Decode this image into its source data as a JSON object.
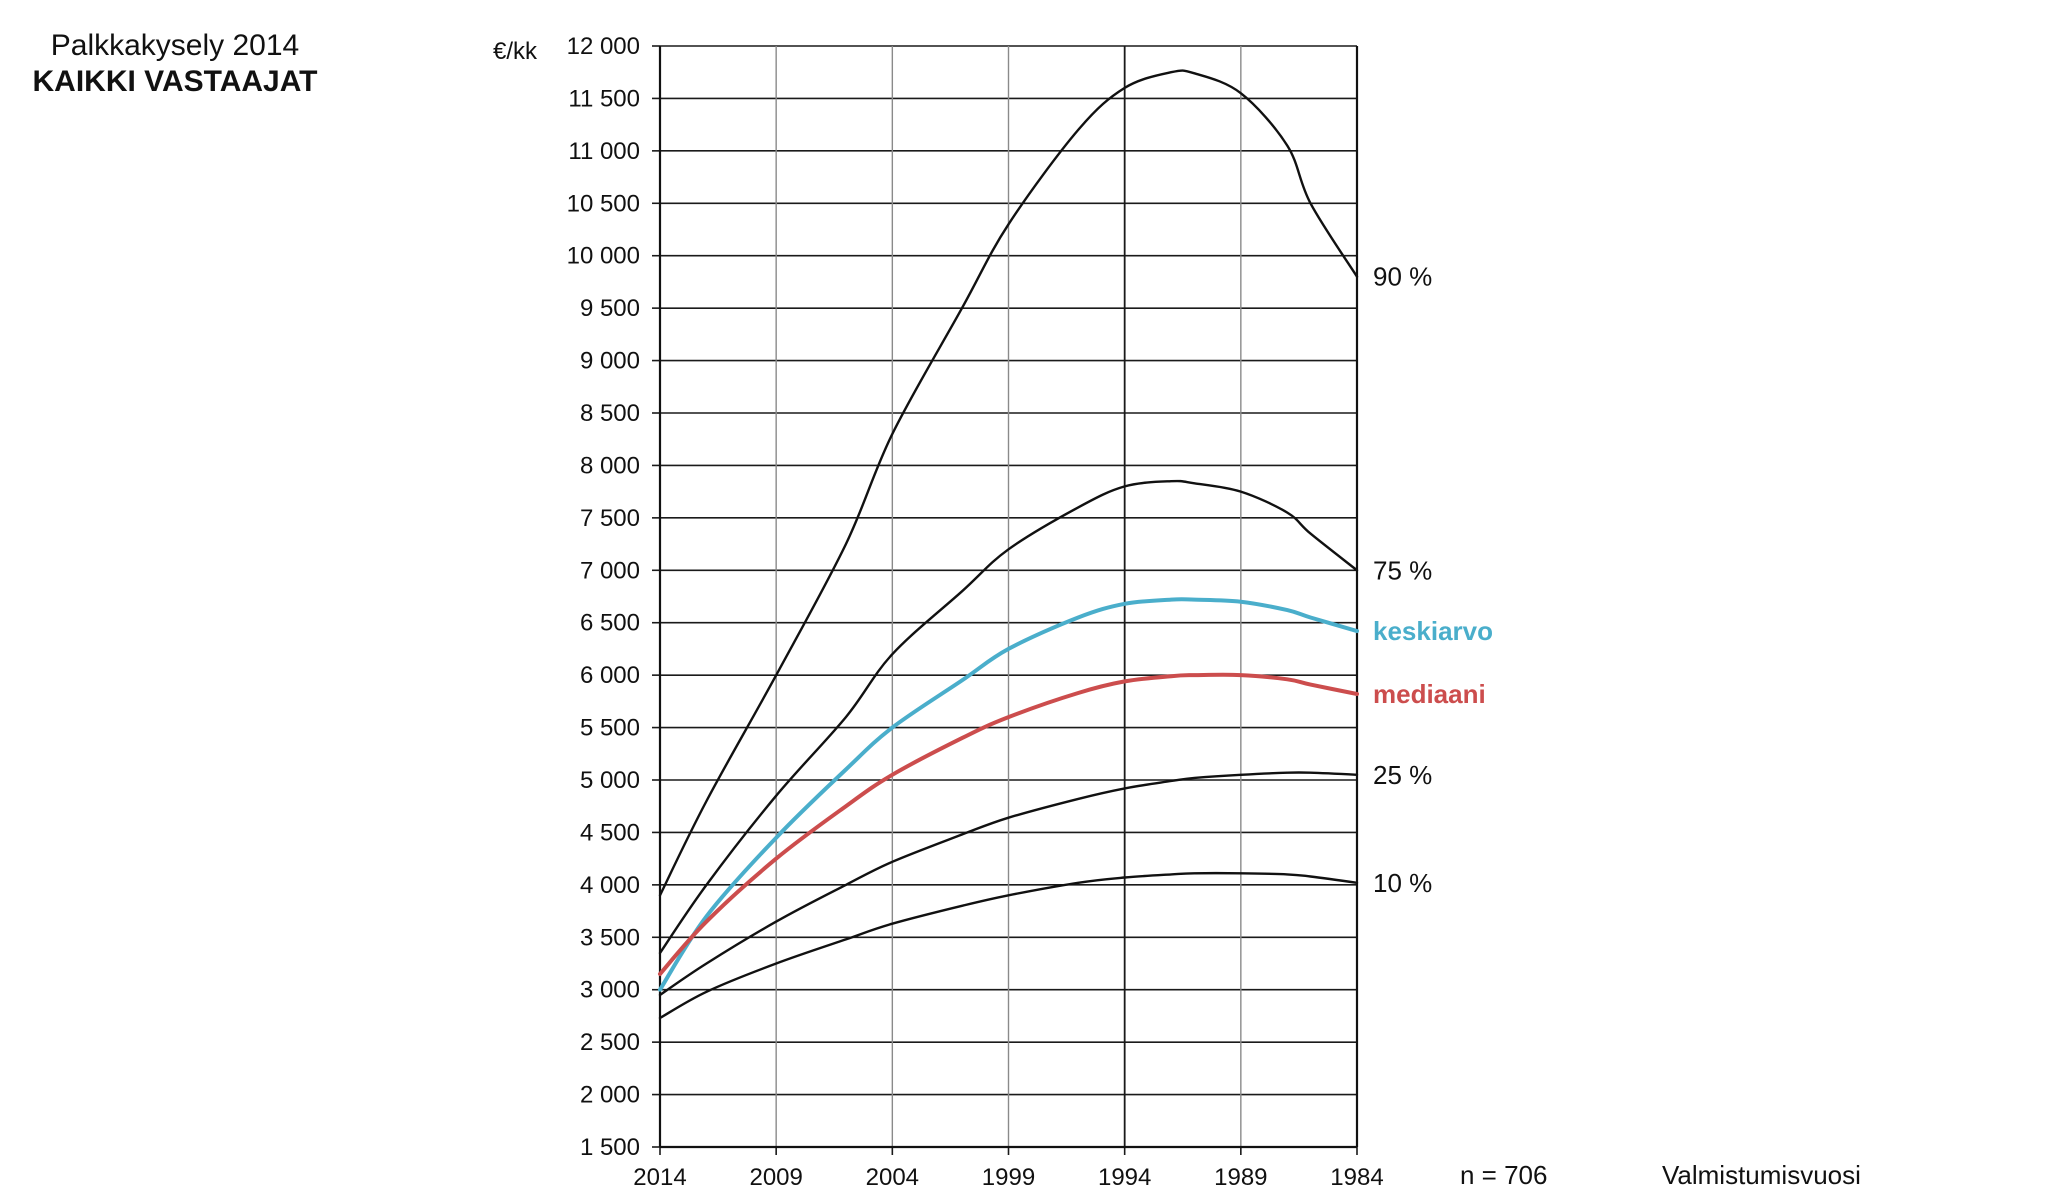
{
  "header": {
    "title": "Palkkakysely 2014",
    "subtitle": "KAIKKI VASTAAJAT"
  },
  "chart_data": {
    "type": "line",
    "title": "Palkkakysely 2014",
    "subtitle": "KAIKKI VASTAAJAT",
    "ylabel": "€/kk",
    "xlabel": "Valmistumisvuosi",
    "ylim": [
      1500,
      12000
    ],
    "xlim": [
      2014,
      1984
    ],
    "x_reversed": true,
    "grid": true,
    "yticks": [
      1500,
      2000,
      2500,
      3000,
      3500,
      4000,
      4500,
      5000,
      5500,
      6000,
      6500,
      7000,
      7500,
      8000,
      8500,
      9000,
      9500,
      10000,
      10500,
      11000,
      11500,
      12000
    ],
    "ytick_labels": [
      "1 500",
      "2 000",
      "2 500",
      "3 000",
      "3 500",
      "4 000",
      "4 500",
      "5 000",
      "5 500",
      "6 000",
      "6 500",
      "7 000",
      "7 500",
      "8 000",
      "8 500",
      "9 000",
      "9 500",
      "10 000",
      "10 500",
      "11 000",
      "11 500",
      "12 000"
    ],
    "xticks": [
      2014,
      2009,
      2004,
      1999,
      1994,
      1989,
      1984
    ],
    "xtick_labels": [
      "2014",
      "2009",
      "2004",
      "1999",
      "1994",
      "1989",
      "1984"
    ],
    "annotation": "n = 706",
    "series": [
      {
        "name": "90 %",
        "color": "#111111",
        "x": [
          2014,
          2012,
          2009,
          2006,
          2004,
          2001,
          1999,
          1996,
          1994,
          1992,
          1991,
          1989,
          1987,
          1986,
          1984
        ],
        "y": [
          3900,
          4800,
          6000,
          7250,
          8300,
          9500,
          10300,
          11200,
          11600,
          11750,
          11740,
          11550,
          11050,
          10500,
          9800
        ]
      },
      {
        "name": "75 %",
        "color": "#111111",
        "x": [
          2014,
          2012,
          2009,
          2006,
          2004,
          2001,
          1999,
          1996,
          1994,
          1992,
          1991,
          1989,
          1987,
          1986,
          1984
        ],
        "y": [
          3350,
          4000,
          4850,
          5600,
          6200,
          6800,
          7200,
          7600,
          7800,
          7850,
          7830,
          7750,
          7550,
          7350,
          7000
        ]
      },
      {
        "name": "keskiarvo",
        "color": "#4aaecb",
        "x": [
          2014,
          2012,
          2009,
          2006,
          2004,
          2001,
          1999,
          1996,
          1994,
          1992,
          1991,
          1989,
          1987,
          1986,
          1984
        ],
        "y": [
          3000,
          3700,
          4450,
          5100,
          5500,
          5950,
          6250,
          6550,
          6680,
          6720,
          6720,
          6700,
          6620,
          6550,
          6420
        ]
      },
      {
        "name": "mediaani",
        "color": "#cc4d4d",
        "x": [
          2014,
          2012,
          2009,
          2006,
          2004,
          2001,
          1999,
          1996,
          1994,
          1992,
          1991,
          1989,
          1987,
          1986,
          1984
        ],
        "y": [
          3150,
          3650,
          4250,
          4750,
          5050,
          5400,
          5600,
          5830,
          5940,
          5990,
          6000,
          6000,
          5960,
          5910,
          5820
        ]
      },
      {
        "name": "25 %",
        "color": "#111111",
        "x": [
          2014,
          2012,
          2009,
          2006,
          2004,
          2001,
          1999,
          1996,
          1994,
          1992,
          1991,
          1989,
          1987,
          1986,
          1984
        ],
        "y": [
          2950,
          3250,
          3650,
          4000,
          4220,
          4480,
          4640,
          4820,
          4920,
          4990,
          5020,
          5050,
          5070,
          5070,
          5050
        ]
      },
      {
        "name": "10 %",
        "color": "#111111",
        "x": [
          2014,
          2012,
          2009,
          2006,
          2004,
          2001,
          1999,
          1996,
          1994,
          1992,
          1991,
          1989,
          1987,
          1986,
          1984
        ],
        "y": [
          2730,
          2980,
          3250,
          3480,
          3630,
          3800,
          3900,
          4020,
          4070,
          4100,
          4110,
          4110,
          4100,
          4080,
          4020
        ]
      }
    ]
  }
}
